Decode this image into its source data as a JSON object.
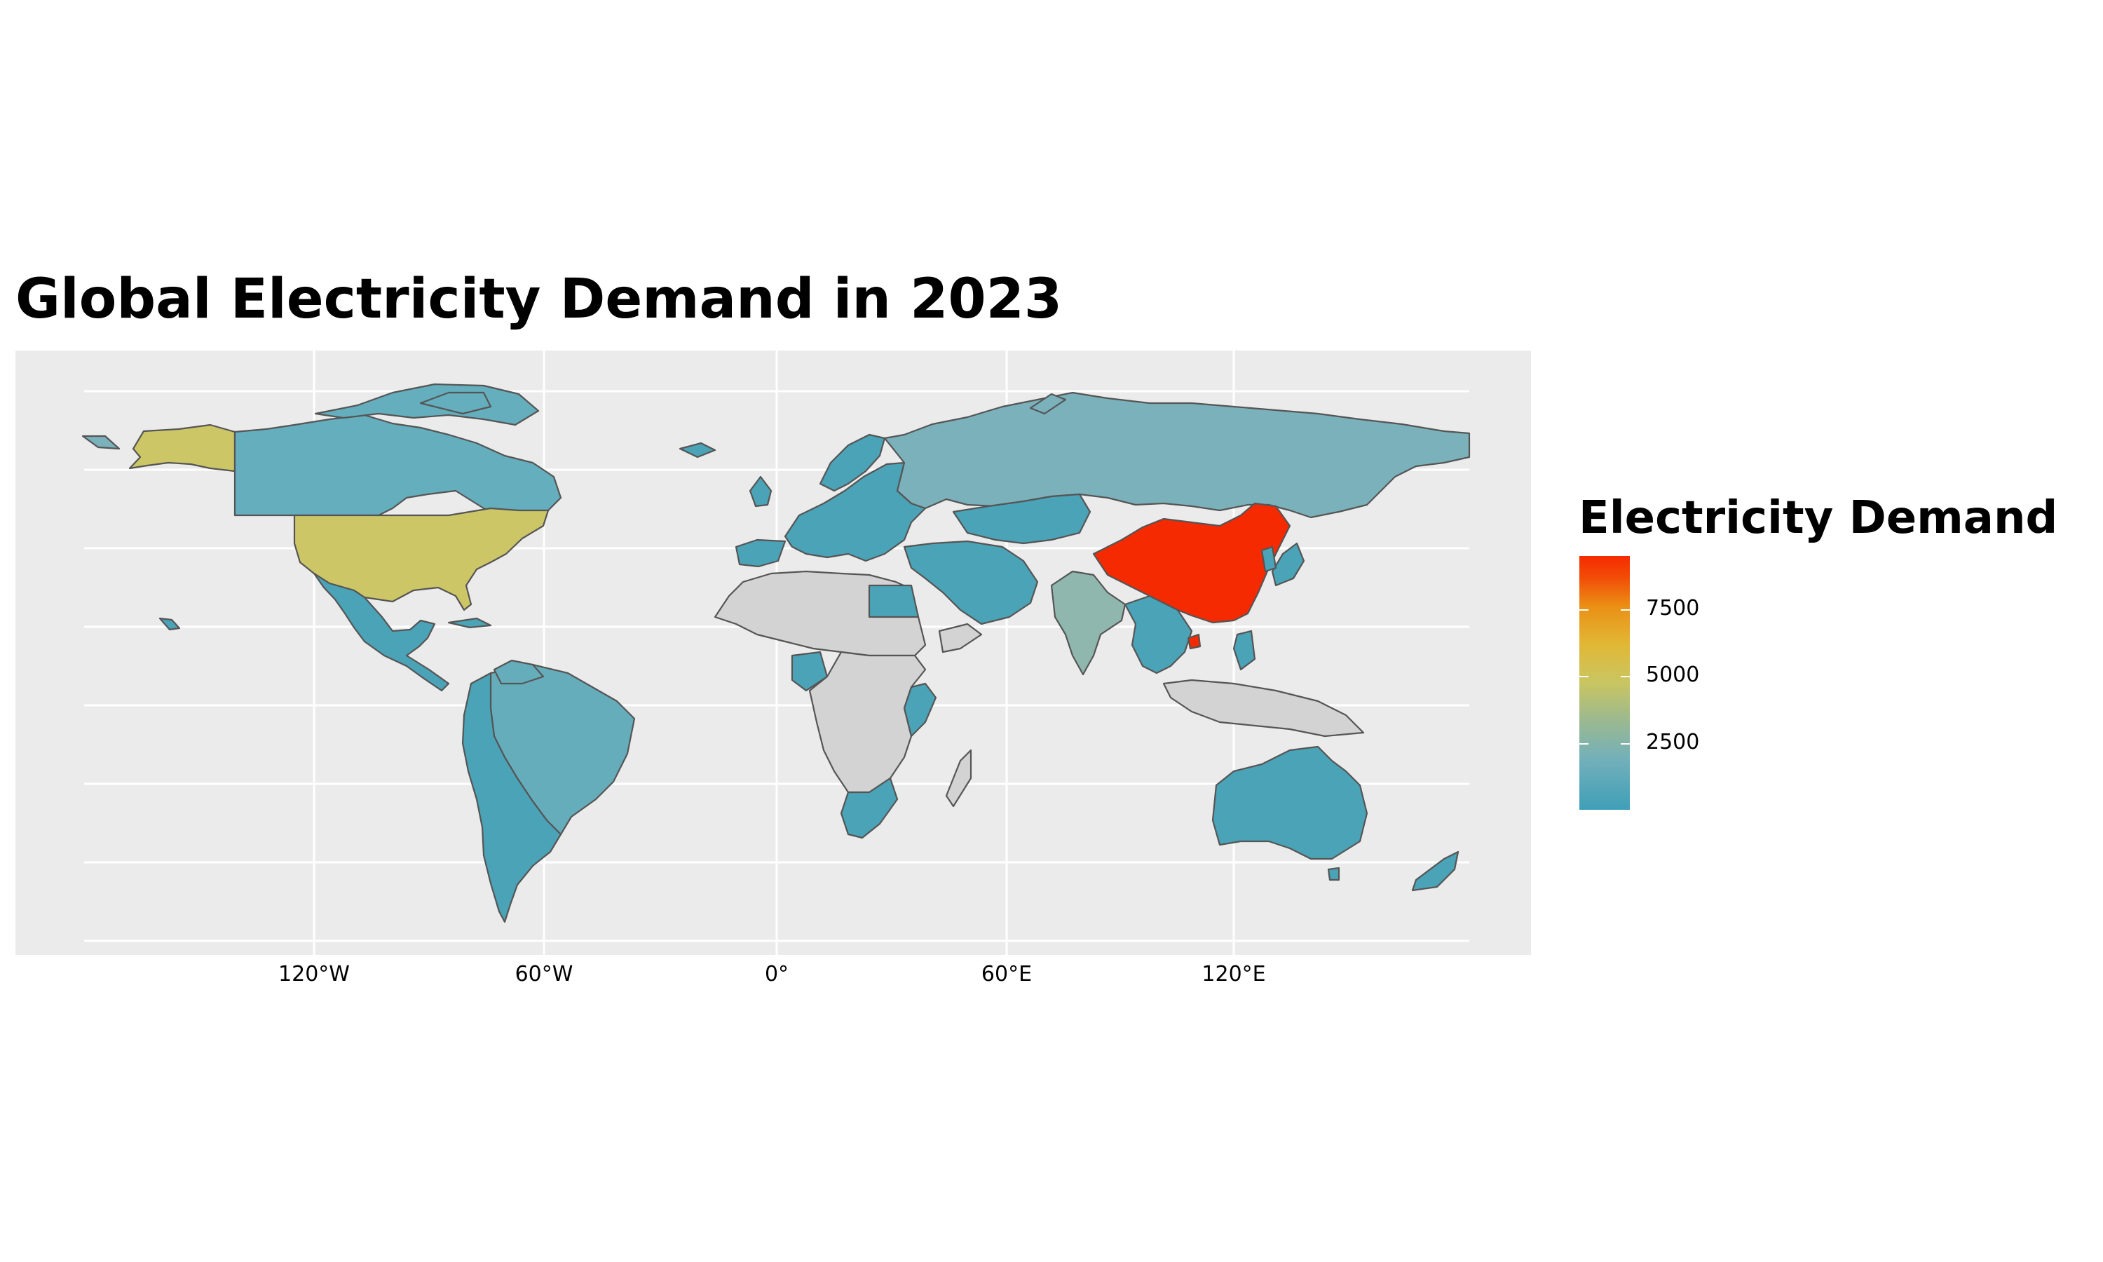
{
  "chart_data": {
    "type": "choropleth",
    "title": "Global Electricity Demand in 2023",
    "legend": {
      "title": "Electricity Demand",
      "position": "right",
      "breaks": [
        7500,
        5000,
        2500
      ],
      "breaks_labels": [
        "7500",
        "5000",
        "2500"
      ],
      "range": [
        0,
        9500
      ],
      "colors": [
        "#3f9fb8",
        "#73b0ba",
        "#c9c562",
        "#e1b836",
        "#f52a00"
      ]
    },
    "x_ticks": [
      "120°W",
      "60°W",
      "0°",
      "60°E",
      "120°E"
    ],
    "x_tick_values": [
      -120,
      -60,
      0,
      60,
      120
    ],
    "lon_range": [
      -180,
      180
    ],
    "lat_range": [
      -58,
      84
    ],
    "grid": true,
    "no_data_color": "#d3d3d3",
    "regions": [
      {
        "name": "China",
        "value": 9400,
        "color": "#f52a00"
      },
      {
        "name": "United States",
        "value": 4200,
        "color": "#cdc667"
      },
      {
        "name": "India",
        "value": 1800,
        "color": "#8fb7ad"
      },
      {
        "name": "Russia",
        "value": 1100,
        "color": "#7ab1bb"
      },
      {
        "name": "Canada",
        "value": 600,
        "color": "#64aebd"
      },
      {
        "name": "Brazil",
        "value": 700,
        "color": "#66adbc"
      },
      {
        "name": "Australia",
        "value": 270,
        "color": "#4aa3b6"
      },
      {
        "name": "Europe",
        "value": 300,
        "color": "#4aa3b6"
      },
      {
        "name": "South America other",
        "value": 150,
        "color": "#4aa3b6"
      },
      {
        "name": "Mexico",
        "value": 330,
        "color": "#4aa3b6"
      },
      {
        "name": "Middle East",
        "value": 400,
        "color": "#4aa3b6"
      },
      {
        "name": "Southeast Asia",
        "value": 300,
        "color": "#4aa3b6"
      },
      {
        "name": "Japan",
        "value": 1000,
        "color": "#4aa3b6"
      },
      {
        "name": "South Africa",
        "value": 230,
        "color": "#4aa3b6"
      },
      {
        "name": "Africa other",
        "value": null,
        "color": "#d3d3d3"
      }
    ]
  }
}
